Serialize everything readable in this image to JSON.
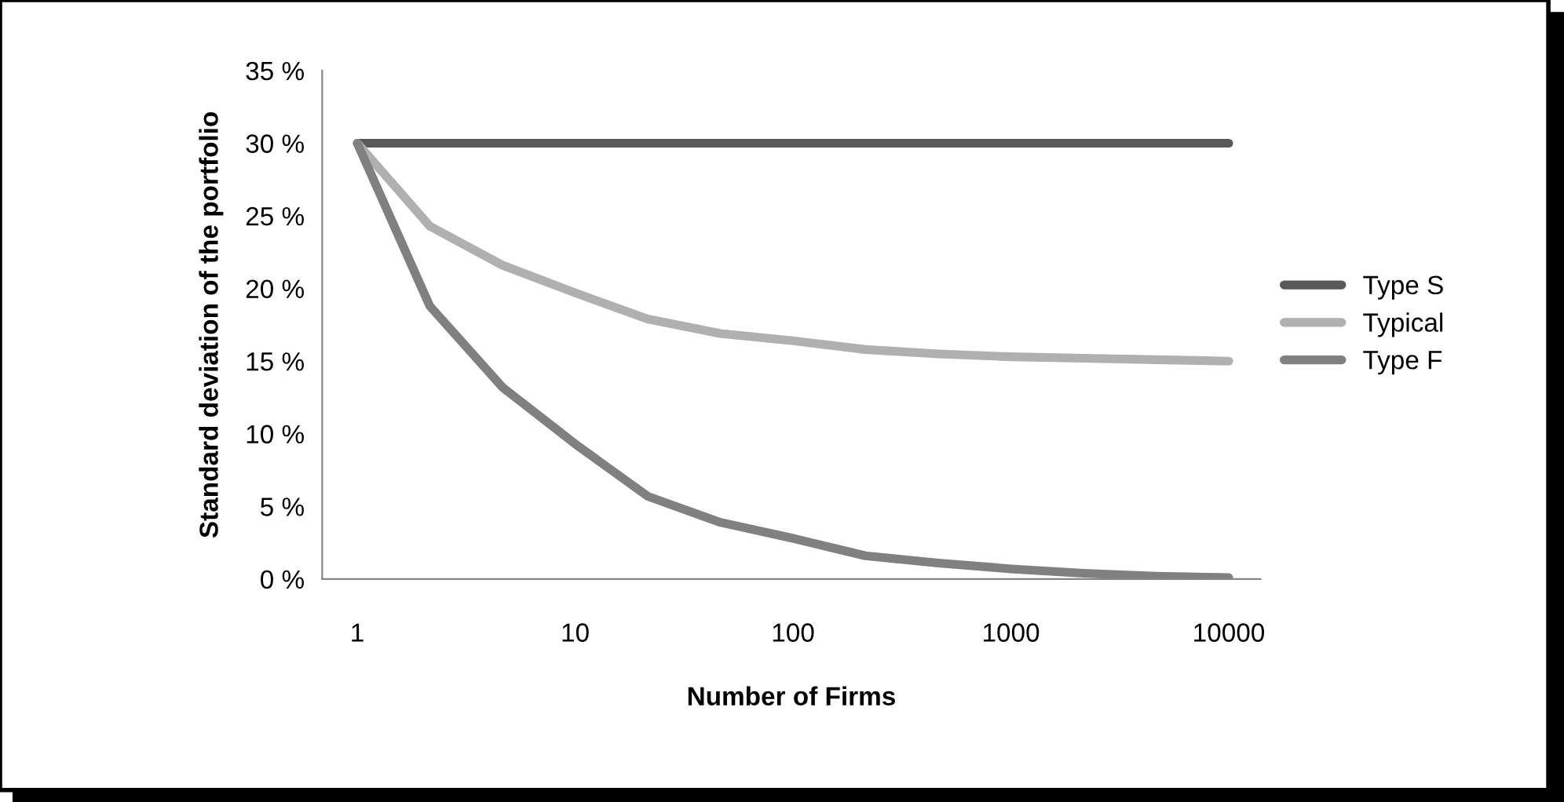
{
  "chart_data": {
    "type": "line",
    "xlabel": "Number of Firms",
    "ylabel": "Standard deviation of the portfolio",
    "log": "x",
    "x": [
      1,
      2.15,
      4.64,
      10,
      21.5,
      46.4,
      100,
      215,
      464,
      1000,
      2150,
      4640,
      10000
    ],
    "xlim": [
      0.69,
      14000
    ],
    "xticks": [
      1,
      10,
      100,
      1000,
      10000
    ],
    "ylim": [
      0,
      35
    ],
    "yticks": [
      {
        "value": 0,
        "label": "0 %"
      },
      {
        "value": 5,
        "label": "5 %"
      },
      {
        "value": 10,
        "label": "10 %"
      },
      {
        "value": 15,
        "label": "15 %"
      },
      {
        "value": 20,
        "label": "20 %"
      },
      {
        "value": 25,
        "label": "25 %"
      },
      {
        "value": 30,
        "label": "30 %"
      },
      {
        "value": 35,
        "label": "35 %"
      }
    ],
    "grid": false,
    "legend": "right",
    "marker": "none",
    "line_style": "solid",
    "series": [
      {
        "name": "Type S",
        "color": "#595959",
        "values": [
          30,
          30,
          30,
          30,
          30,
          30,
          30,
          30,
          30,
          30,
          30,
          30,
          30
        ]
      },
      {
        "name": "Typical",
        "color": "#b0b0b0",
        "values": [
          30,
          24.3,
          21.6,
          19.7,
          17.9,
          16.9,
          16.4,
          15.8,
          15.5,
          15.3,
          15.2,
          15.1,
          15.0
        ]
      },
      {
        "name": "Type F",
        "color": "#808080",
        "values": [
          30,
          18.8,
          13.2,
          9.3,
          5.7,
          3.9,
          2.8,
          1.6,
          1.1,
          0.7,
          0.4,
          0.2,
          0.1
        ]
      }
    ]
  }
}
